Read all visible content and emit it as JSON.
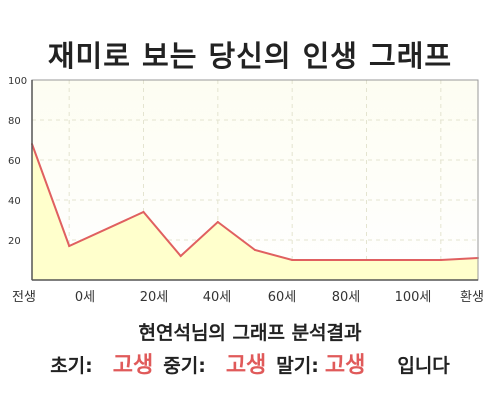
{
  "chart_data": {
    "type": "area",
    "title": "재미로 보는 당신의 인생 그래프",
    "x_labels": [
      "전생",
      "0세",
      "20세",
      "40세",
      "60세",
      "80세",
      "100세",
      "환생"
    ],
    "x": [
      -10,
      0,
      20,
      30,
      40,
      50,
      60,
      80,
      100,
      110
    ],
    "values": [
      68,
      17,
      34,
      12,
      29,
      15,
      10,
      10,
      10,
      11
    ],
    "y_ticks": [
      20,
      40,
      60,
      80,
      100
    ],
    "ylim": [
      0,
      100
    ],
    "grid": true,
    "line_color": "#e06060",
    "fill_color": "#ffffcc"
  },
  "summary": {
    "title": "현연석님의 그래프 분석결과",
    "early_label": "초기:",
    "early_value": "고생",
    "middle_label": "중기:",
    "middle_value": "고생",
    "late_label": "말기:",
    "late_value": "고생",
    "suffix": "입니다"
  }
}
